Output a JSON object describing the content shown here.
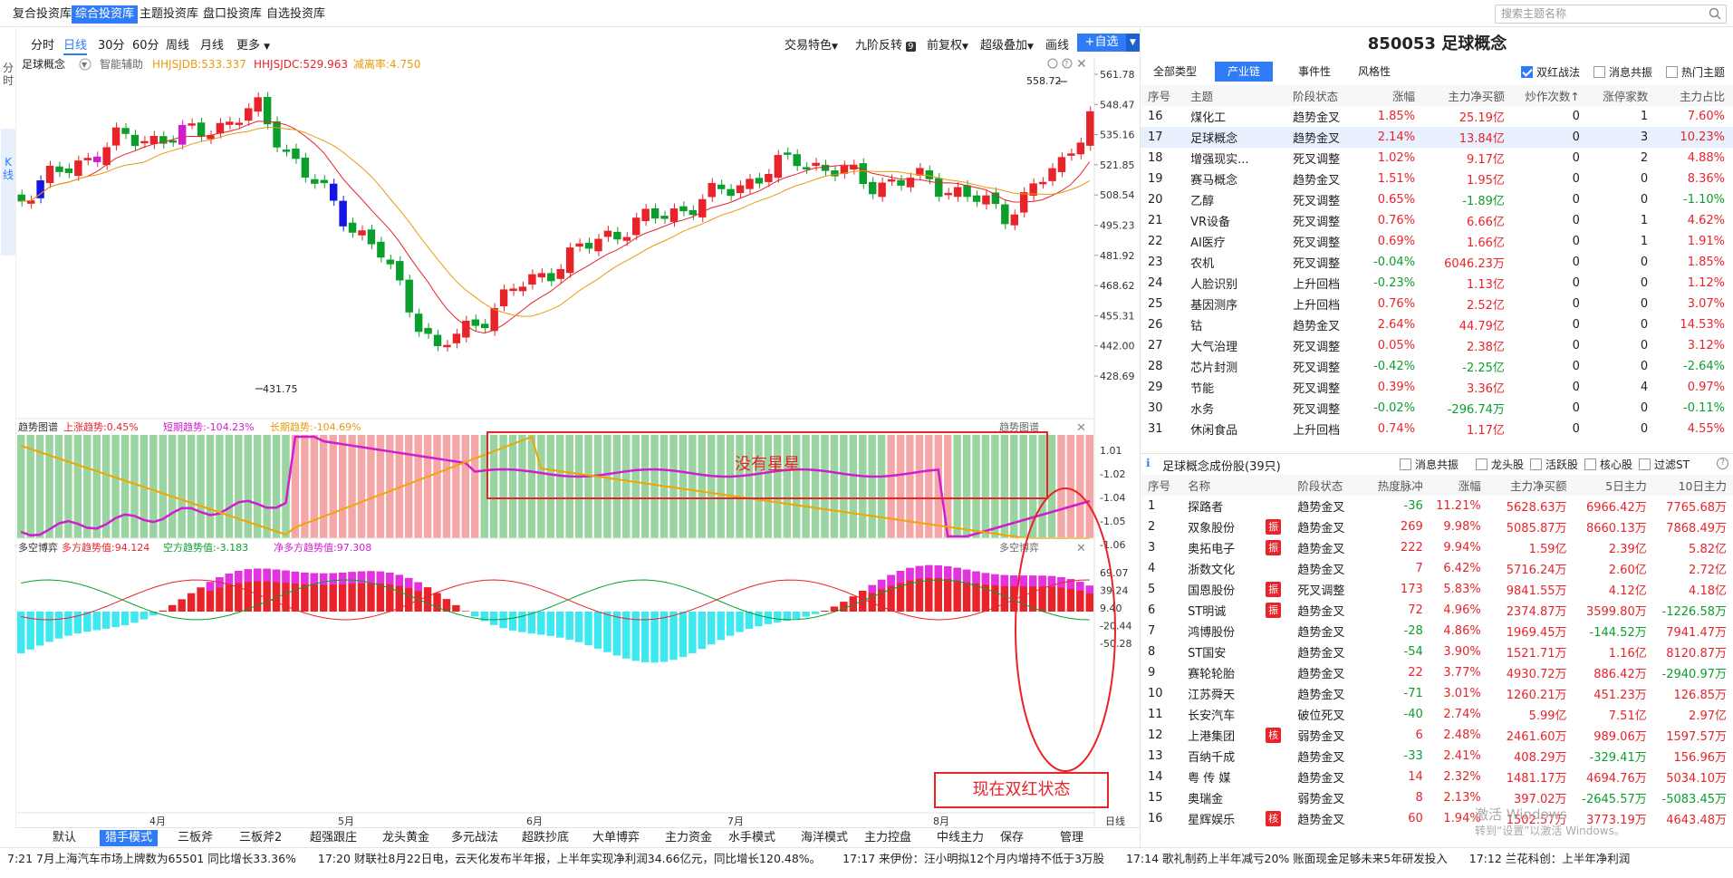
{
  "top_tabs": [
    "复合投资库",
    "综合投资库",
    "主题投资库",
    "盘口投资库",
    "自选投资库"
  ],
  "top_active": 1,
  "search_placeholder": "搜索主题名称",
  "left_rail": [
    "分时",
    "K线"
  ],
  "periods": [
    "分时",
    "日线",
    "30分",
    "60分",
    "周线",
    "月线",
    "更多"
  ],
  "period_active": 1,
  "right_tools": [
    "交易特色",
    "九阶反转",
    "前复权",
    "超级叠加",
    "画线"
  ],
  "nine_badge": "9",
  "add_fav": "+自选",
  "chart_header": {
    "name": "足球概念",
    "assist": "智能辅助",
    "l1": "HHJSJDB:533.337",
    "l2": "HHJSJDC:529.963",
    "l3": "减离率:4.750"
  },
  "price_axis": [
    "561.78",
    "548.47",
    "535.16",
    "521.85",
    "508.54",
    "495.23",
    "481.92",
    "468.62",
    "455.31",
    "442.00",
    "428.69"
  ],
  "high_label": "558.72",
  "low_label": "431.75",
  "trend_header": {
    "title": "趋势图谱",
    "a": "上涨趋势:0.45%",
    "b": "短期趋势:-104.23%",
    "c": "长期趋势:-104.69%"
  },
  "trend_axis": [
    "1.01",
    "-1.02",
    "-1.04",
    "-1.05",
    "-1.06"
  ],
  "duokong_header": {
    "title": "多空博弈",
    "a": "多方趋势值:94.124",
    "b": "空方趋势值:-3.183",
    "c": "净多方趋势值:97.308"
  },
  "duokong_axis": [
    "69.07",
    "39.24",
    "9.40",
    "-20.44",
    "-50.28"
  ],
  "right_title_tag": "趋势图谱",
  "right_title_tag2": "多空博弈",
  "months": [
    "4月",
    "5月",
    "6月",
    "7月",
    "8月"
  ],
  "period_label": "日线",
  "bottom_tabs": [
    "默认",
    "猎手模式",
    "三板斧",
    "三板斧2",
    "超强跟庄",
    "龙头黄金",
    "多元战法",
    "超跌抄底",
    "大单博弈",
    "主力资金",
    "水手模式",
    "海洋模式",
    "主力控盘",
    "中线主力",
    "保存",
    "管理"
  ],
  "bottom_active": 1,
  "anno1": "没有星星",
  "anno2": "现在双红状态",
  "panel": {
    "title": "850053 足球概念",
    "tabs": [
      "全部类型",
      "产业链",
      "事件性",
      "风格性"
    ],
    "tab_active": 1,
    "checks": [
      {
        "label": "双红战法",
        "on": true
      },
      {
        "label": "消息共振",
        "on": false
      },
      {
        "label": "热门主题",
        "on": false
      }
    ],
    "head": [
      "序号",
      "主题",
      "阶段状态",
      "涨幅",
      "主力净买额",
      "炒作次数↑",
      "涨停家数",
      "主力占比"
    ],
    "rows": [
      [
        "16",
        "煤化工",
        "趋势金叉",
        "1.85%",
        "25.19亿",
        "0",
        "1",
        "7.60%"
      ],
      [
        "17",
        "足球概念",
        "趋势金叉",
        "2.14%",
        "13.84亿",
        "0",
        "3",
        "10.23%"
      ],
      [
        "18",
        "增强现实...",
        "死叉调整",
        "1.02%",
        "9.17亿",
        "0",
        "2",
        "4.88%"
      ],
      [
        "19",
        "赛马概念",
        "趋势金叉",
        "1.51%",
        "1.95亿",
        "0",
        "0",
        "8.36%"
      ],
      [
        "20",
        "乙醇",
        "死叉调整",
        "0.65%",
        "-1.89亿",
        "0",
        "0",
        "-1.10%"
      ],
      [
        "21",
        "VR设备",
        "死叉调整",
        "0.76%",
        "6.66亿",
        "0",
        "1",
        "4.62%"
      ],
      [
        "22",
        "AI医疗",
        "死叉调整",
        "0.69%",
        "1.66亿",
        "0",
        "1",
        "1.91%"
      ],
      [
        "23",
        "农机",
        "死叉调整",
        "-0.04%",
        "6046.23万",
        "0",
        "0",
        "1.85%"
      ],
      [
        "24",
        "人脸识别",
        "上升回档",
        "-0.23%",
        "1.13亿",
        "0",
        "0",
        "1.12%"
      ],
      [
        "25",
        "基因测序",
        "上升回档",
        "0.76%",
        "2.52亿",
        "0",
        "0",
        "3.07%"
      ],
      [
        "26",
        "钴",
        "趋势金叉",
        "2.64%",
        "44.79亿",
        "0",
        "0",
        "14.53%"
      ],
      [
        "27",
        "大气治理",
        "死叉调整",
        "0.05%",
        "2.38亿",
        "0",
        "0",
        "3.12%"
      ],
      [
        "28",
        "芯片封测",
        "死叉调整",
        "-0.42%",
        "-2.25亿",
        "0",
        "0",
        "-2.64%"
      ],
      [
        "29",
        "节能",
        "死叉调整",
        "0.39%",
        "3.36亿",
        "0",
        "4",
        "0.97%"
      ],
      [
        "30",
        "水务",
        "死叉调整",
        "-0.02%",
        "-296.74万",
        "0",
        "0",
        "-0.11%"
      ],
      [
        "31",
        "休闲食品",
        "上升回档",
        "0.74%",
        "1.17亿",
        "0",
        "0",
        "4.55%"
      ]
    ],
    "comp_title": "足球概念成份股(39只)",
    "comp_checks": [
      "消息共振",
      "龙头股",
      "活跃股",
      "核心股",
      "过滤ST"
    ],
    "comp_head": [
      "序号",
      "名称",
      "阶段状态",
      "热度脉冲",
      "涨幅",
      "主力净买额",
      "5日主力",
      "10日主力"
    ],
    "comp_rows": [
      [
        "1",
        "探路者",
        "",
        "趋势金叉",
        "-36",
        "11.21%",
        "5628.63万",
        "6966.42万",
        "7765.68万"
      ],
      [
        "2",
        "双象股份",
        "振",
        "趋势金叉",
        "269",
        "9.98%",
        "5085.87万",
        "8660.13万",
        "7868.49万"
      ],
      [
        "3",
        "奥拓电子",
        "振",
        "趋势金叉",
        "222",
        "9.94%",
        "1.59亿",
        "2.39亿",
        "5.82亿"
      ],
      [
        "4",
        "浙数文化",
        "",
        "趋势金叉",
        "7",
        "6.42%",
        "5716.24万",
        "2.60亿",
        "2.72亿"
      ],
      [
        "5",
        "国恩股份",
        "振",
        "死叉调整",
        "173",
        "5.83%",
        "9841.55万",
        "4.12亿",
        "4.18亿"
      ],
      [
        "6",
        "ST明诚",
        "振",
        "趋势金叉",
        "72",
        "4.96%",
        "2374.87万",
        "3599.80万",
        "-1226.58万"
      ],
      [
        "7",
        "鸿博股份",
        "",
        "趋势金叉",
        "-28",
        "4.86%",
        "1969.45万",
        "-144.52万",
        "7941.47万"
      ],
      [
        "8",
        "ST国安",
        "",
        "趋势金叉",
        "-54",
        "3.90%",
        "1521.71万",
        "1.16亿",
        "8120.87万"
      ],
      [
        "9",
        "赛轮轮胎",
        "",
        "趋势金叉",
        "22",
        "3.77%",
        "4930.72万",
        "886.42万",
        "-2940.97万"
      ],
      [
        "10",
        "江苏舜天",
        "",
        "趋势金叉",
        "-71",
        "3.01%",
        "1260.21万",
        "451.23万",
        "126.85万"
      ],
      [
        "11",
        "长安汽车",
        "",
        "破位死叉",
        "-40",
        "2.74%",
        "5.99亿",
        "7.51亿",
        "2.97亿"
      ],
      [
        "12",
        "上港集团",
        "核",
        "弱势金叉",
        "6",
        "2.48%",
        "2461.60万",
        "989.06万",
        "1597.57万"
      ],
      [
        "13",
        "百纳千成",
        "",
        "趋势金叉",
        "-33",
        "2.41%",
        "408.29万",
        "-329.41万",
        "156.96万"
      ],
      [
        "14",
        "粤 传 媒",
        "",
        "趋势金叉",
        "14",
        "2.32%",
        "1481.17万",
        "4694.76万",
        "5034.10万"
      ],
      [
        "15",
        "奥瑞金",
        "",
        "弱势金叉",
        "8",
        "2.13%",
        "397.02万",
        "-2645.57万",
        "-5083.45万"
      ],
      [
        "16",
        "星辉娱乐",
        "核",
        "趋势金叉",
        "60",
        "1.94%",
        "1502.57万",
        "3773.19万",
        "4643.48万"
      ]
    ]
  },
  "ticker": [
    "7:21 7月上海汽车市场上牌数为65501 同比增长33.36%",
    "17:20 财联社8月22日电，云天化发布半年报，上半年实现净利润34.66亿元，同比增长120.48%。",
    "17:17 来伊份：汪小明拟12个月内增持不低于3万股",
    "17:14 歌礼制药上半年减亏20% 账面现金足够未来5年研发投入",
    "17:12 兰花科创：上半年净利润"
  ],
  "watermark": [
    "激活 Windows",
    "转到“设置”以激活 Windows。"
  ],
  "colors": {
    "up": "#e8232a",
    "down": "#0a9e2c",
    "accent": "#2f7cf6"
  }
}
